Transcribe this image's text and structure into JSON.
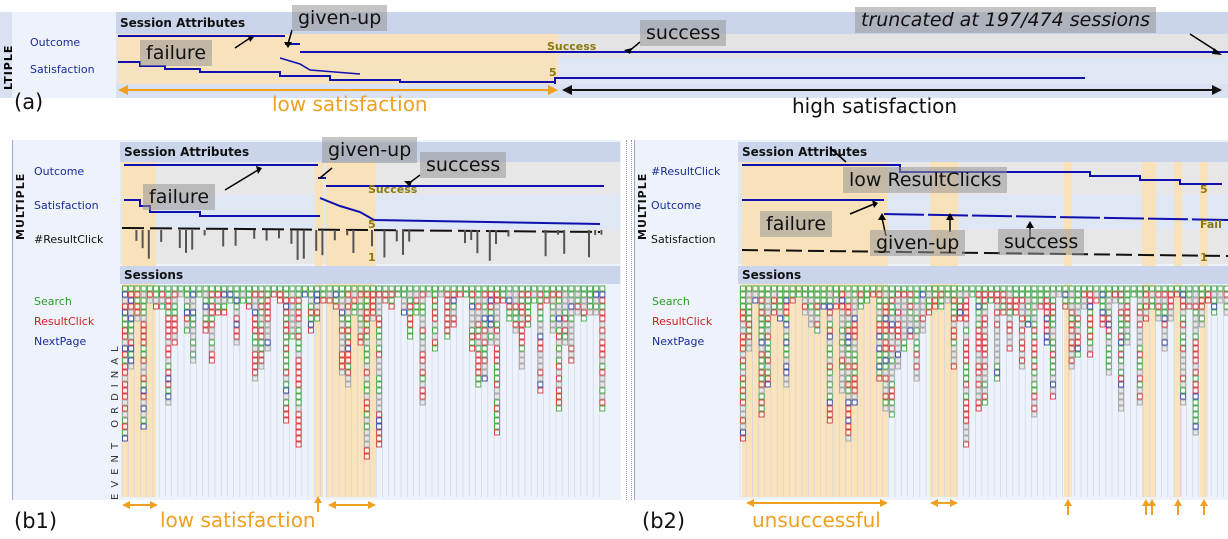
{
  "panel_a": {
    "label": "(a)",
    "side_title": "LTIPLE",
    "header": "Session Attributes",
    "rows": [
      "Outcome",
      "Satisfaction"
    ],
    "inline_labels": {
      "success": "Success",
      "five": "5"
    },
    "callouts": {
      "failure": "failure",
      "given_up": "given-up",
      "success": "success",
      "truncated": "truncated at 197/474 sessions"
    },
    "annotations": {
      "low": "low satisfaction",
      "high": "high satisfaction"
    }
  },
  "panel_b1": {
    "label": "(b1)",
    "side_title": "MULTIPLE",
    "header": "Session Attributes",
    "rows": [
      "Outcome",
      "Satisfaction",
      "#ResultClick"
    ],
    "inline_labels": {
      "success": "Success",
      "five": "5",
      "one": "1"
    },
    "sessions_header": "Sessions",
    "legend": [
      "Search",
      "ResultClick",
      "NextPage"
    ],
    "event_axis": "EVENT ORDINAL",
    "callouts": {
      "failure": "failure",
      "given_up": "given-up",
      "success": "success"
    },
    "annotation": "low satisfaction"
  },
  "panel_b2": {
    "label": "(b2)",
    "side_title": "MULTIPLE",
    "header": "Session Attributes",
    "rows": [
      "#ResultClick",
      "Outcome",
      "Satisfaction"
    ],
    "inline_labels": {
      "five": "5",
      "fail": "Fail",
      "one": "1"
    },
    "sessions_header": "Sessions",
    "legend": [
      "Search",
      "ResultClick",
      "NextPage"
    ],
    "callouts": {
      "low_clicks": "low ResultClicks",
      "failure": "failure",
      "given_up": "given-up",
      "success": "success"
    },
    "annotation": "unsuccessful"
  },
  "colors": {
    "search": "#2a9a2a",
    "resultclick": "#d02020",
    "nextpage": "#1a2d9c",
    "highlight": "#fbe1b4",
    "orange": "#f0a020",
    "line": "#1010b0"
  }
}
